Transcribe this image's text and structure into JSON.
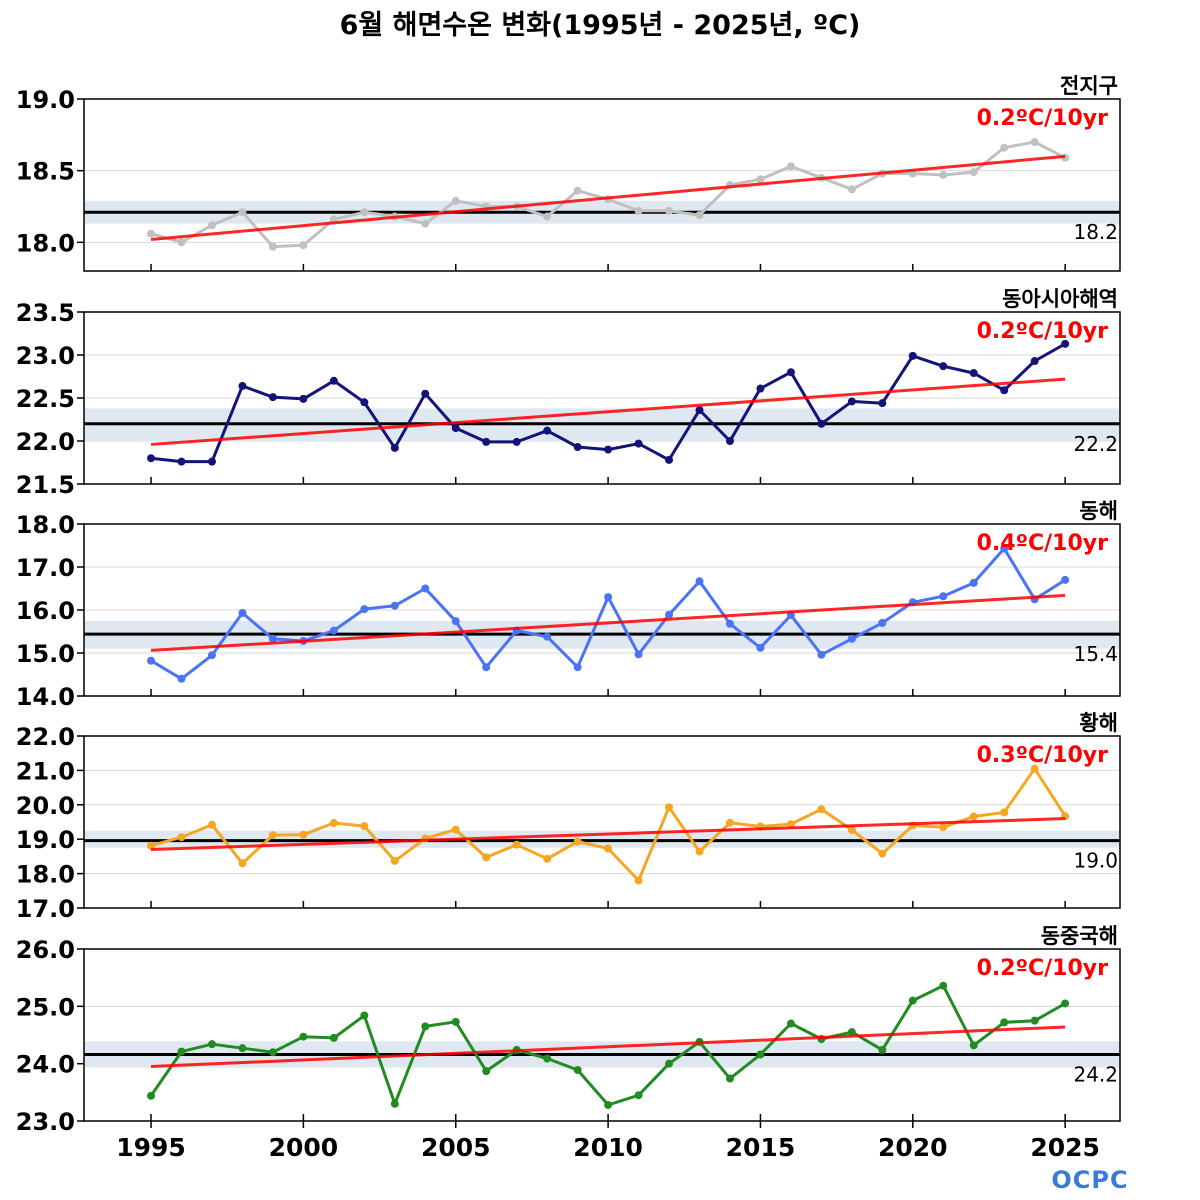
{
  "title": "6월 해면수온 변화(1995년 - 2025년, ºC)",
  "logo_text": "OCPC",
  "colors": {
    "trend": "#ff0000",
    "normal": "#000000",
    "normal_band": "#dfe8f1",
    "grid": "#d8d8d8"
  },
  "chart_data": [
    {
      "type": "line",
      "name": "전지구",
      "trend_label": "0.2ºC/10yr",
      "normal_label": "18.2",
      "normal": 18.21,
      "band": [
        18.13,
        18.29
      ],
      "color": "#c0c0c0",
      "ylim": [
        17.8,
        19.0
      ],
      "yticks": [
        18.0,
        18.5,
        19.0
      ],
      "years": [
        1995,
        1996,
        1997,
        1998,
        1999,
        2000,
        2001,
        2002,
        2003,
        2004,
        2005,
        2006,
        2007,
        2008,
        2009,
        2010,
        2011,
        2012,
        2013,
        2014,
        2015,
        2016,
        2017,
        2018,
        2019,
        2020,
        2021,
        2022,
        2023,
        2024,
        2025
      ],
      "values": [
        18.06,
        18.0,
        18.12,
        18.21,
        17.97,
        17.98,
        18.16,
        18.21,
        18.18,
        18.13,
        18.29,
        18.25,
        18.25,
        18.18,
        18.36,
        18.3,
        18.22,
        18.22,
        18.19,
        18.4,
        18.44,
        18.53,
        18.45,
        18.37,
        18.48,
        18.48,
        18.47,
        18.49,
        18.66,
        18.7,
        18.59
      ],
      "trend_line": [
        18.02,
        18.6
      ]
    },
    {
      "type": "line",
      "name": "동아시아해역",
      "trend_label": "0.2ºC/10yr",
      "normal_label": "22.2",
      "normal": 22.2,
      "band": [
        22.0,
        22.38
      ],
      "color": "#13137a",
      "ylim": [
        21.5,
        23.5
      ],
      "yticks": [
        21.5,
        22.0,
        22.5,
        23.0,
        23.5
      ],
      "years": [
        1995,
        1996,
        1997,
        1998,
        1999,
        2000,
        2001,
        2002,
        2003,
        2004,
        2005,
        2006,
        2007,
        2008,
        2009,
        2010,
        2011,
        2012,
        2013,
        2014,
        2015,
        2016,
        2017,
        2018,
        2019,
        2020,
        2021,
        2022,
        2023,
        2024,
        2025
      ],
      "values": [
        21.8,
        21.76,
        21.76,
        22.64,
        22.51,
        22.49,
        22.7,
        22.45,
        21.92,
        22.55,
        22.15,
        21.99,
        21.99,
        22.12,
        21.93,
        21.9,
        21.97,
        21.78,
        22.36,
        22.0,
        22.61,
        22.8,
        22.2,
        22.46,
        22.44,
        22.99,
        22.87,
        22.79,
        22.59,
        22.93,
        23.13
      ],
      "trend_line": [
        21.96,
        22.72
      ]
    },
    {
      "type": "line",
      "name": "동해",
      "trend_label": "0.4ºC/10yr",
      "normal_label": "15.4",
      "normal": 15.44,
      "band": [
        15.1,
        15.75
      ],
      "color": "#4a73f5",
      "ylim": [
        14.0,
        18.0
      ],
      "yticks": [
        14.0,
        15.0,
        16.0,
        17.0,
        18.0
      ],
      "years": [
        1995,
        1996,
        1997,
        1998,
        1999,
        2000,
        2001,
        2002,
        2003,
        2004,
        2005,
        2006,
        2007,
        2008,
        2009,
        2010,
        2011,
        2012,
        2013,
        2014,
        2015,
        2016,
        2017,
        2018,
        2019,
        2020,
        2021,
        2022,
        2023,
        2024,
        2025
      ],
      "values": [
        14.82,
        14.4,
        14.95,
        15.93,
        15.33,
        15.28,
        15.52,
        16.02,
        16.1,
        16.5,
        15.74,
        14.67,
        15.52,
        15.38,
        14.67,
        16.3,
        14.97,
        15.89,
        16.67,
        15.68,
        15.12,
        15.88,
        14.96,
        15.33,
        15.7,
        16.18,
        16.32,
        16.63,
        17.43,
        16.25,
        16.7
      ],
      "trend_line": [
        15.06,
        16.34
      ]
    },
    {
      "type": "line",
      "name": "황해",
      "trend_label": "0.3ºC/10yr",
      "normal_label": "19.0",
      "normal": 18.96,
      "band": [
        18.75,
        19.25
      ],
      "color": "#f5a623",
      "ylim": [
        17.0,
        22.0
      ],
      "yticks": [
        17.0,
        18.0,
        19.0,
        20.0,
        21.0,
        22.0
      ],
      "years": [
        1995,
        1996,
        1997,
        1998,
        1999,
        2000,
        2001,
        2002,
        2003,
        2004,
        2005,
        2006,
        2007,
        2008,
        2009,
        2010,
        2011,
        2012,
        2013,
        2014,
        2015,
        2016,
        2017,
        2018,
        2019,
        2020,
        2021,
        2022,
        2023,
        2024,
        2025
      ],
      "values": [
        18.81,
        19.06,
        19.42,
        18.3,
        19.12,
        19.13,
        19.47,
        19.38,
        18.37,
        19.02,
        19.28,
        18.47,
        18.84,
        18.43,
        18.93,
        18.73,
        17.8,
        19.93,
        18.64,
        19.48,
        19.37,
        19.44,
        19.87,
        19.27,
        18.58,
        19.4,
        19.35,
        19.66,
        19.78,
        21.05,
        19.67
      ],
      "trend_line": [
        18.7,
        19.6
      ]
    },
    {
      "type": "line",
      "name": "동중국해",
      "trend_label": "0.2ºC/10yr",
      "normal_label": "24.2",
      "normal": 24.16,
      "band": [
        23.93,
        24.39
      ],
      "color": "#228b22",
      "ylim": [
        23.0,
        26.0
      ],
      "yticks": [
        23.0,
        24.0,
        25.0,
        26.0
      ],
      "years": [
        1995,
        1996,
        1997,
        1998,
        1999,
        2000,
        2001,
        2002,
        2003,
        2004,
        2005,
        2006,
        2007,
        2008,
        2009,
        2010,
        2011,
        2012,
        2013,
        2014,
        2015,
        2016,
        2017,
        2018,
        2019,
        2020,
        2021,
        2022,
        2023,
        2024,
        2025
      ],
      "values": [
        23.44,
        24.21,
        24.34,
        24.27,
        24.2,
        24.47,
        24.45,
        24.84,
        23.3,
        24.65,
        24.73,
        23.87,
        24.24,
        24.09,
        23.89,
        23.28,
        23.45,
        24.0,
        24.38,
        23.74,
        24.16,
        24.7,
        24.43,
        24.55,
        24.24,
        25.1,
        25.36,
        24.32,
        24.72,
        24.75,
        25.05
      ],
      "trend_line": [
        23.95,
        24.64
      ]
    }
  ],
  "x_axis": {
    "range": [
      1992.8,
      2026.8
    ],
    "ticks": [
      "1995",
      "2000",
      "2005",
      "2010",
      "2015",
      "2020",
      "2025"
    ]
  }
}
